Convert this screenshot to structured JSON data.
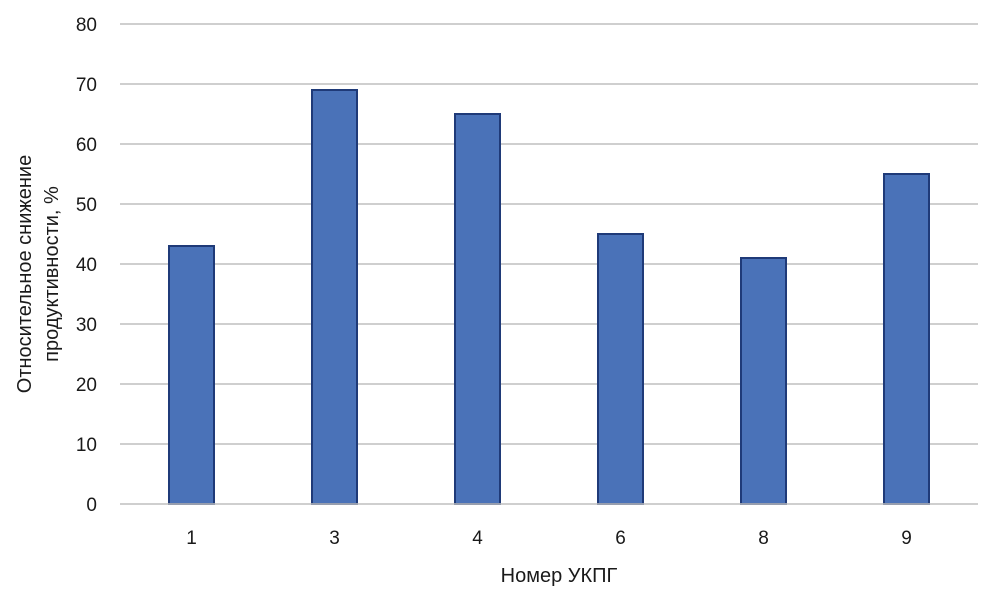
{
  "chart_data": {
    "type": "bar",
    "categories": [
      "1",
      "3",
      "4",
      "6",
      "8",
      "9"
    ],
    "values": [
      43,
      69,
      65,
      45,
      41,
      55
    ],
    "xlabel": "Номер УКПГ",
    "ylabel_lines": [
      "Относительное снижение",
      "продуктивности, %"
    ],
    "ylim": [
      0,
      80
    ],
    "yticks": [
      0,
      10,
      20,
      30,
      40,
      50,
      60,
      70,
      80
    ],
    "grid": true,
    "legend": "none",
    "colors": {
      "bar_fill": "#4a72b8",
      "bar_edge": "#1f3a78",
      "grid": "#bfbfbf",
      "text": "#1a1a1a"
    }
  }
}
